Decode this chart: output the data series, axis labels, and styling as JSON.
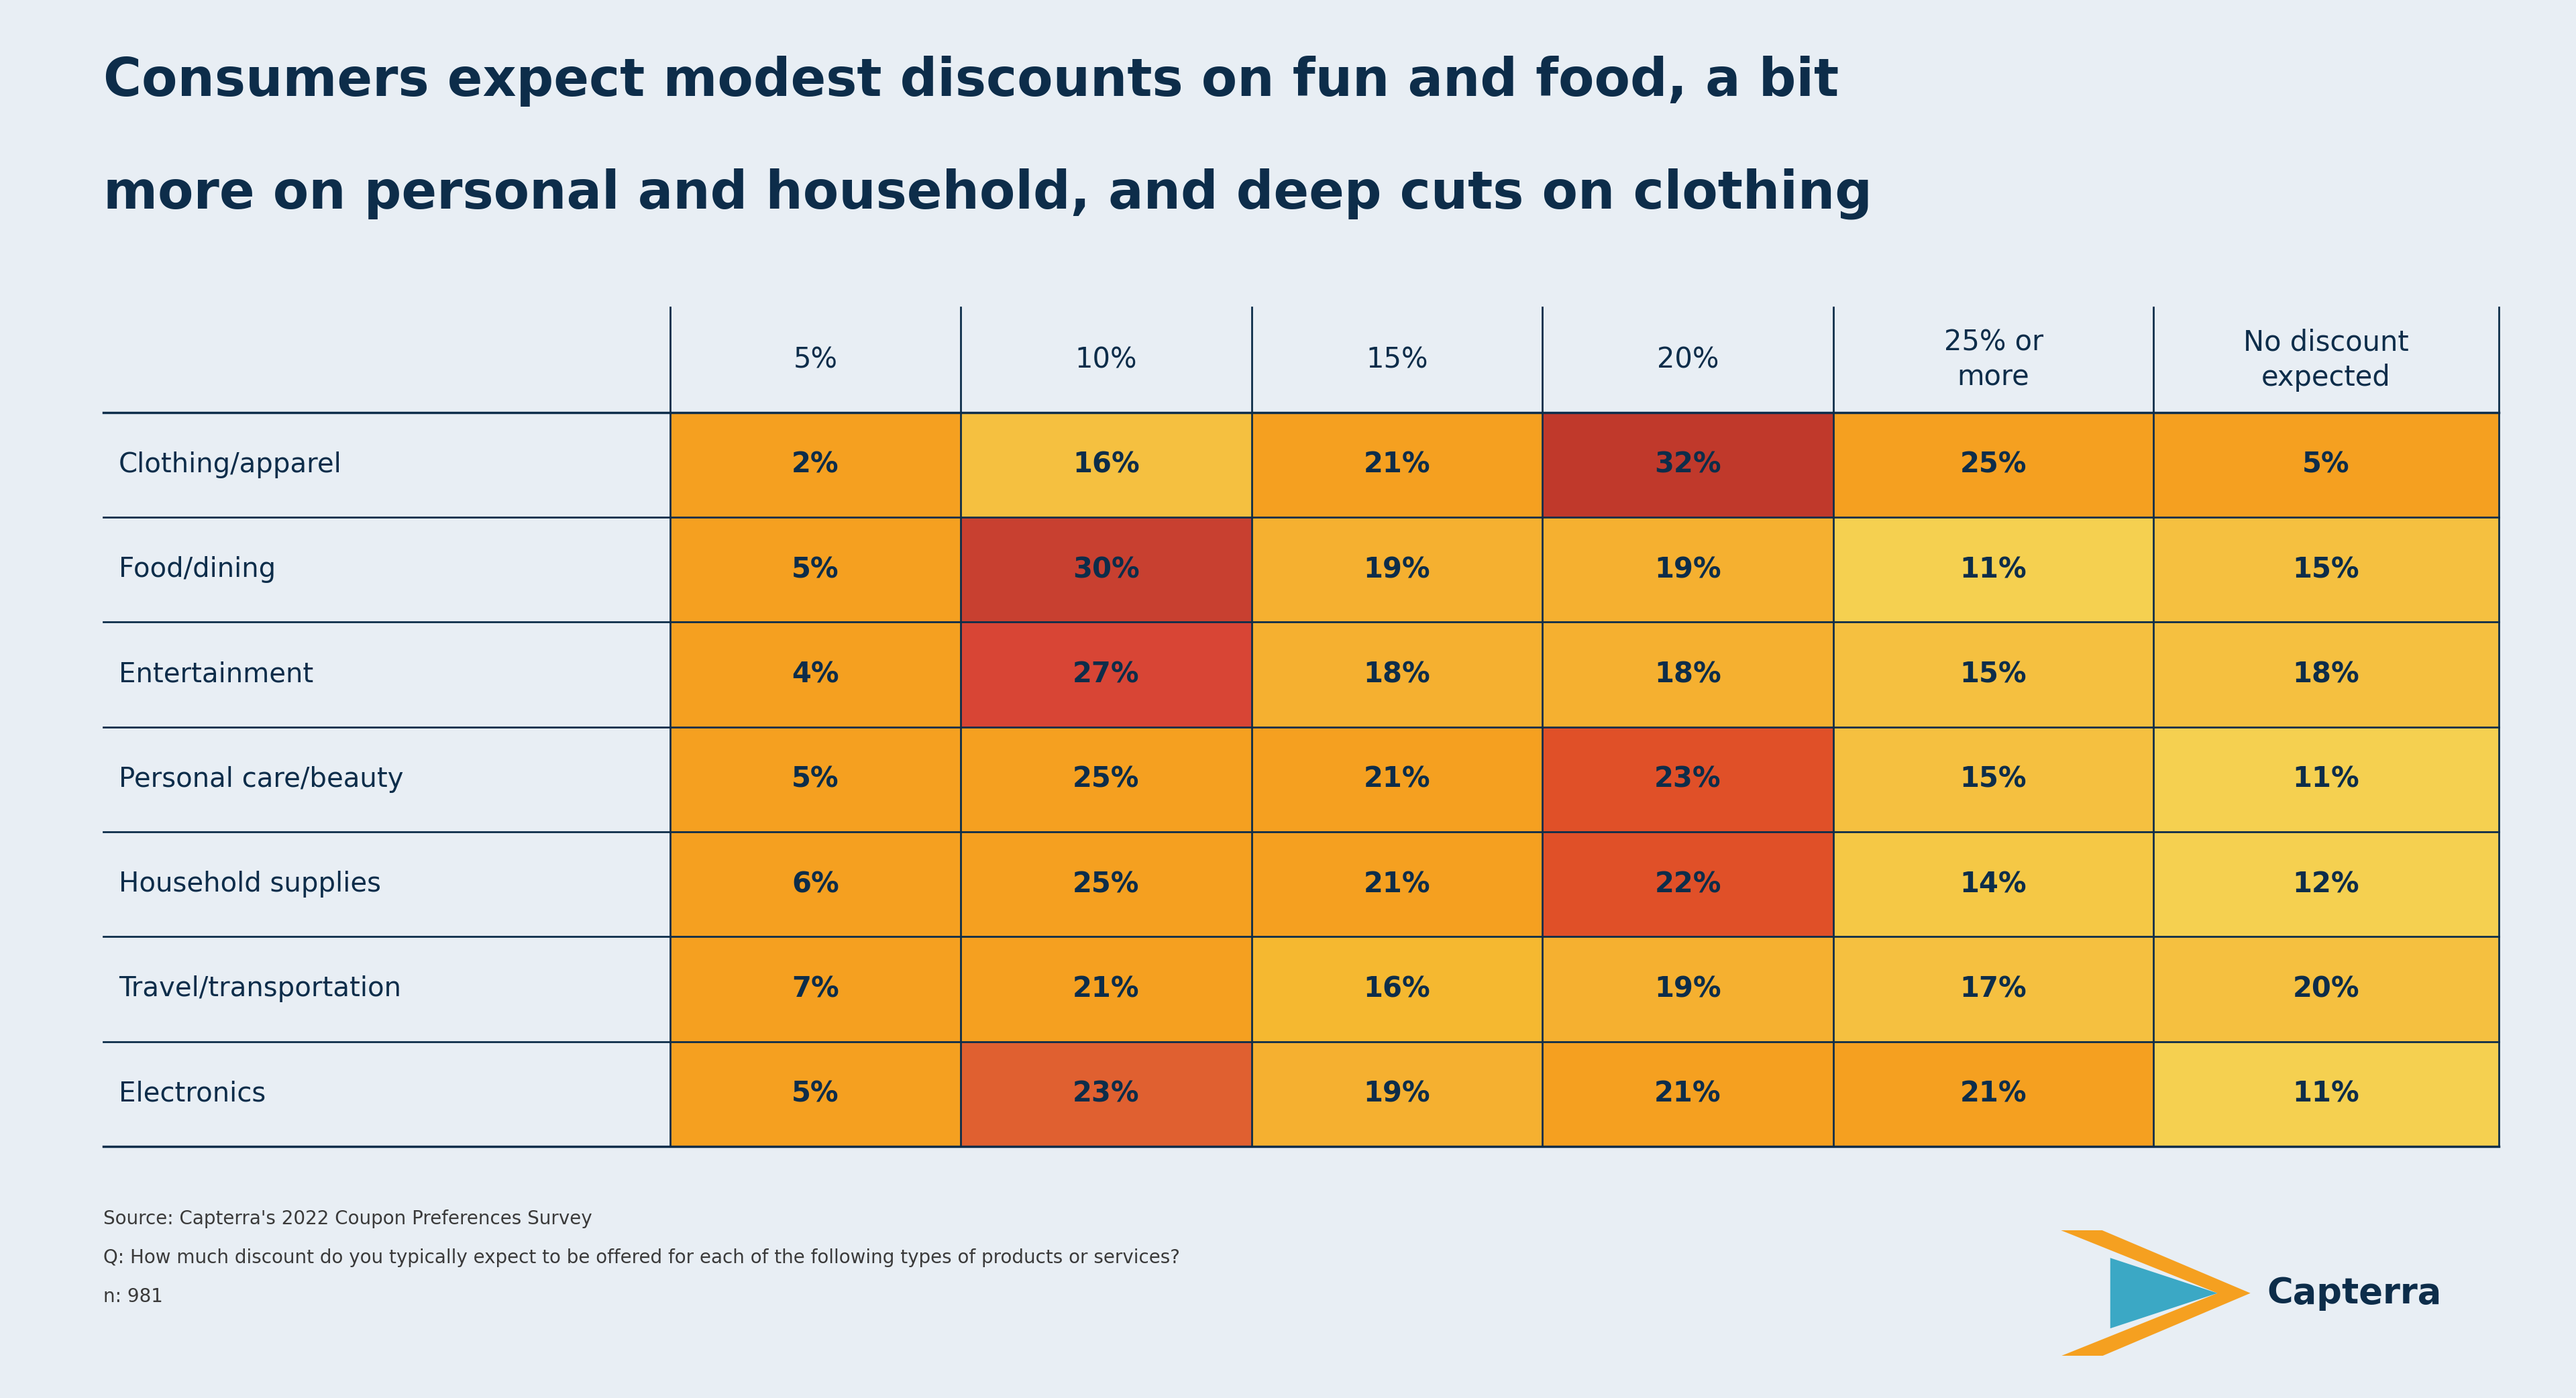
{
  "title_line1": "Consumers expect modest discounts on fun and food, a bit",
  "title_line2": "more on personal and household, and deep cuts on clothing",
  "background_color": "#e8eef4",
  "title_color": "#0d2d4a",
  "title_fontsize": 56,
  "rows": [
    "Clothing/apparel",
    "Food/dining",
    "Entertainment",
    "Personal care/beauty",
    "Household supplies",
    "Travel/transportation",
    "Electronics"
  ],
  "columns": [
    "5%",
    "10%",
    "15%",
    "20%",
    "25% or\nmore",
    "No discount\nexpected"
  ],
  "data": [
    [
      2,
      16,
      21,
      32,
      25,
      5
    ],
    [
      5,
      30,
      19,
      19,
      11,
      15
    ],
    [
      4,
      27,
      18,
      18,
      15,
      18
    ],
    [
      5,
      25,
      21,
      23,
      15,
      11
    ],
    [
      6,
      25,
      21,
      22,
      14,
      12
    ],
    [
      7,
      21,
      16,
      19,
      17,
      20
    ],
    [
      5,
      23,
      19,
      21,
      21,
      11
    ]
  ],
  "cell_colors": [
    [
      "#F5A020",
      "#F5C040",
      "#F5A020",
      "#C0392B",
      "#F5A020",
      "#F5A020"
    ],
    [
      "#F5A020",
      "#C84030",
      "#F5B030",
      "#F5B030",
      "#F5D050",
      "#F5C040"
    ],
    [
      "#F5A020",
      "#D84535",
      "#F5B030",
      "#F5B030",
      "#F5C040",
      "#F5C040"
    ],
    [
      "#F5A020",
      "#F5A020",
      "#F5A020",
      "#E05028",
      "#F5C040",
      "#F5D050"
    ],
    [
      "#F5A020",
      "#F5A020",
      "#F5A020",
      "#E05028",
      "#F5C845",
      "#F5D050"
    ],
    [
      "#F5A020",
      "#F5A020",
      "#F5B830",
      "#F5B030",
      "#F5C040",
      "#F5C040"
    ],
    [
      "#F5A020",
      "#E06030",
      "#F5B030",
      "#F5A020",
      "#F5A020",
      "#F5D050"
    ]
  ],
  "text_color": "#0d2d4a",
  "source_line1": "Source: Capterra's 2022 Coupon Preferences Survey",
  "source_line2": "Q: How much discount do you typically expect to be offered for each of the following types of products or services?",
  "source_line3": "n: 981",
  "source_fontsize": 20
}
